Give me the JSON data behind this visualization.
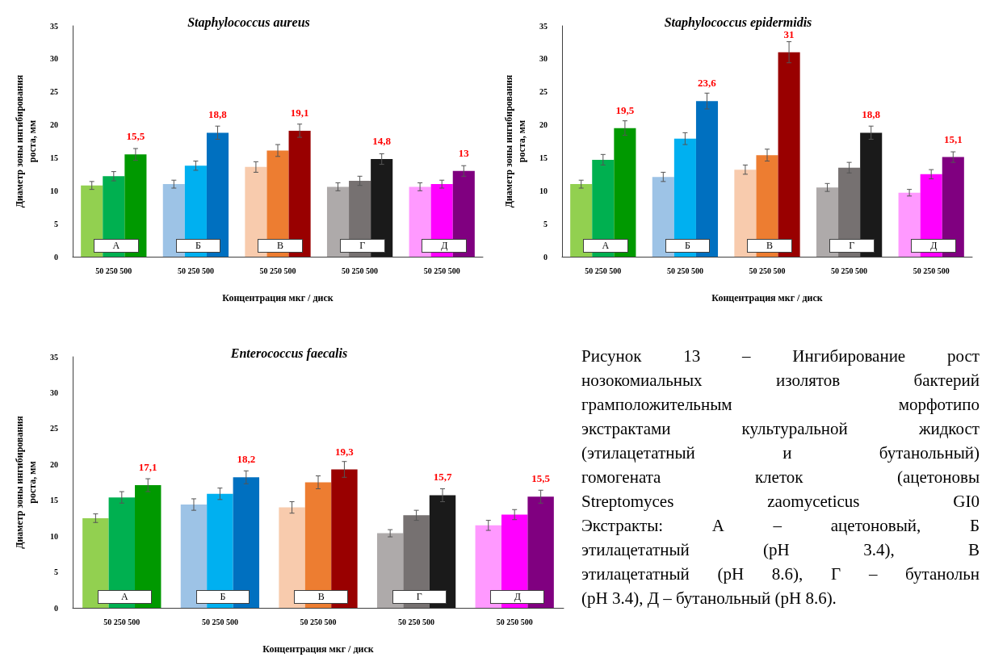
{
  "chart_data": [
    {
      "type": "bar",
      "title": "Staphylococcus aureus",
      "xlabel": "Концентрация мкг / диск",
      "ylabel": "Диаметр зоны ингибирования роста, мм",
      "categories": [
        "50 250 500",
        "50 250 500",
        "50 250 500",
        "50 250 500",
        "50 250 500"
      ],
      "ylim": [
        0,
        35
      ],
      "yticks": [
        0,
        5,
        10,
        15,
        20,
        25,
        30,
        35
      ],
      "annotations": [
        "А",
        "Б",
        "В",
        "Г",
        "Д"
      ],
      "series": [
        {
          "colors": [
            "#92d050",
            "#9dc3e6",
            "#f8cbad",
            "#aeaaaa",
            "#ff99ff"
          ],
          "values": [
            10.8,
            11.0,
            13.6,
            10.6,
            10.6
          ],
          "errors": [
            0.6,
            0.6,
            0.8,
            0.6,
            0.6
          ]
        },
        {
          "colors": [
            "#00b050",
            "#00b0f0",
            "#ed7d31",
            "#767171",
            "#ff00ff"
          ],
          "values": [
            12.2,
            13.8,
            16.1,
            11.5,
            11.0
          ],
          "errors": [
            0.7,
            0.7,
            0.9,
            0.7,
            0.6
          ]
        },
        {
          "colors": [
            "#009900",
            "#0070c0",
            "#990000",
            "#1a1a1a",
            "#800080"
          ],
          "values": [
            15.5,
            18.8,
            19.1,
            14.8,
            13
          ],
          "errors": [
            0.9,
            1.0,
            1.0,
            0.8,
            0.8
          ],
          "value_labels": [
            "15,5",
            "18,8",
            "19,1",
            "14,8",
            "13"
          ]
        }
      ]
    },
    {
      "type": "bar",
      "title": "Staphylococcus epidermidis",
      "xlabel": "Концентрация мкг / диск",
      "ylabel": "Диаметр зоны ингибирования роста, мм",
      "categories": [
        "50 250 500",
        "50 250 500",
        "50 250 500",
        "50 250 500",
        "50 250 500"
      ],
      "ylim": [
        0,
        35
      ],
      "yticks": [
        0,
        5,
        10,
        15,
        20,
        25,
        30,
        35
      ],
      "annotations": [
        "А",
        "Б",
        "В",
        "Г",
        "Д"
      ],
      "series": [
        {
          "colors": [
            "#92d050",
            "#9dc3e6",
            "#f8cbad",
            "#aeaaaa",
            "#ff99ff"
          ],
          "values": [
            11.0,
            12.1,
            13.2,
            10.5,
            9.7
          ],
          "errors": [
            0.6,
            0.7,
            0.7,
            0.6,
            0.5
          ]
        },
        {
          "colors": [
            "#00b050",
            "#00b0f0",
            "#ed7d31",
            "#767171",
            "#ff00ff"
          ],
          "values": [
            14.7,
            17.9,
            15.4,
            13.5,
            12.5
          ],
          "errors": [
            0.8,
            0.9,
            0.9,
            0.8,
            0.7
          ]
        },
        {
          "colors": [
            "#009900",
            "#0070c0",
            "#990000",
            "#1a1a1a",
            "#800080"
          ],
          "values": [
            19.5,
            23.6,
            31,
            18.8,
            15.1
          ],
          "errors": [
            1.1,
            1.2,
            1.6,
            1.0,
            0.8
          ],
          "value_labels": [
            "19,5",
            "23,6",
            "31",
            "18,8",
            "15,1"
          ]
        }
      ]
    },
    {
      "type": "bar",
      "title": "Enterococcus faecalis",
      "xlabel": "Концентрация мкг / диск",
      "ylabel": "Диаметр зоны ингибирования роста, мм",
      "categories": [
        "50 250 500",
        "50 250 500",
        "50 250 500",
        "50 250 500",
        "50 250 500"
      ],
      "ylim": [
        0,
        35
      ],
      "yticks": [
        0,
        5,
        10,
        15,
        20,
        25,
        30,
        35
      ],
      "annotations": [
        "А",
        "Б",
        "В",
        "Г",
        "Д"
      ],
      "series": [
        {
          "colors": [
            "#92d050",
            "#9dc3e6",
            "#f8cbad",
            "#aeaaaa",
            "#ff99ff"
          ],
          "values": [
            12.5,
            14.4,
            14.0,
            10.4,
            11.5
          ],
          "errors": [
            0.6,
            0.8,
            0.8,
            0.5,
            0.7
          ]
        },
        {
          "colors": [
            "#00b050",
            "#00b0f0",
            "#ed7d31",
            "#767171",
            "#ff00ff"
          ],
          "values": [
            15.4,
            15.9,
            17.5,
            12.9,
            13.0
          ],
          "errors": [
            0.8,
            0.8,
            0.9,
            0.7,
            0.7
          ]
        },
        {
          "colors": [
            "#009900",
            "#0070c0",
            "#990000",
            "#1a1a1a",
            "#800080"
          ],
          "values": [
            17.1,
            18.2,
            19.3,
            15.7,
            15.5
          ],
          "errors": [
            0.9,
            0.9,
            1.1,
            0.9,
            0.9
          ],
          "value_labels": [
            "17,1",
            "18,2",
            "19,3",
            "15,7",
            "15,5"
          ]
        }
      ]
    },
    {
      "type": "other",
      "annotations": [
        "Рисунок 13 – Ингибирование рост",
        "нозокомиальных изолятов бактерий",
        "грамположительным морфотипо",
        "экстрактами культуральной жидкост",
        "(этилацетатный и бутанольный)",
        "гомогената клеток (ацетоновы",
        "Streptomyces zaomyceticus GI0",
        "Экстракты: А – ацетоновый, Б",
        "этилацетатный (pH 3.4), В",
        "этилацетатный (pH 8.6), Г – бутанольн",
        "(pH 3.4), Д – бутанольный (pH 8.6)."
      ]
    }
  ]
}
